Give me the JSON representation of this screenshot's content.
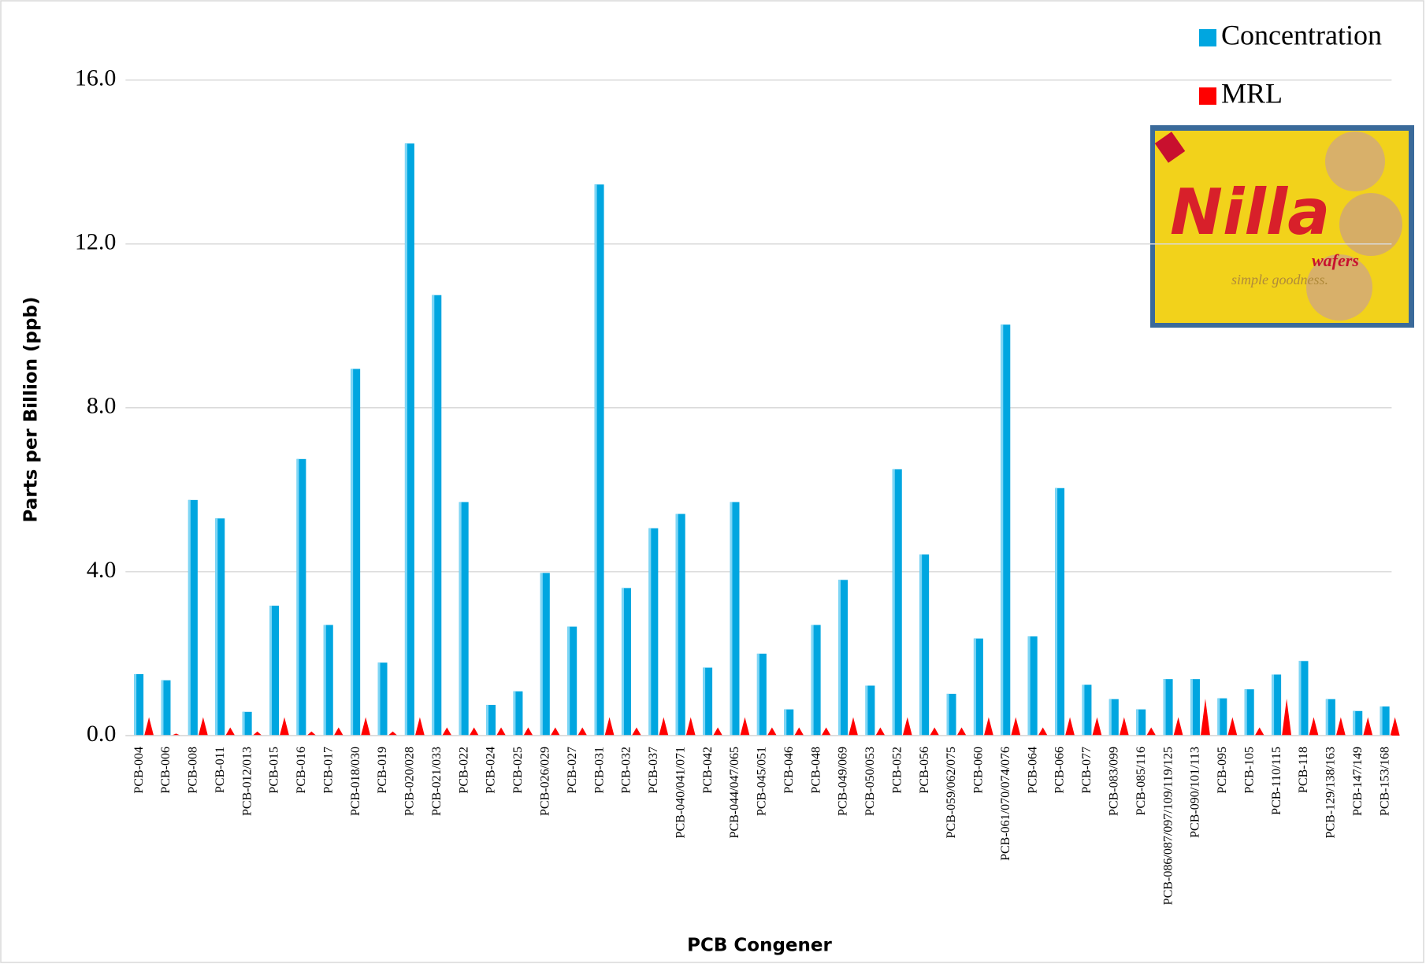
{
  "chart_data": {
    "type": "bar",
    "xlabel": "PCB Congener",
    "ylabel": "Parts per Billion (ppb)",
    "categories": [
      "PCB-004",
      "PCB-006",
      "PCB-008",
      "PCB-011",
      "PCB-012/013",
      "PCB-015",
      "PCB-016",
      "PCB-017",
      "PCB-018/030",
      "PCB-019",
      "PCB-020/028",
      "PCB-021/033",
      "PCB-022",
      "PCB-024",
      "PCB-025",
      "PCB-026/029",
      "PCB-027",
      "PCB-031",
      "PCB-032",
      "PCB-037",
      "PCB-040/041/071",
      "PCB-042",
      "PCB-044/047/065",
      "PCB-045/051",
      "PCB-046",
      "PCB-048",
      "PCB-049/069",
      "PCB-050/053",
      "PCB-052",
      "PCB-056",
      "PCB-059/062/075",
      "PCB-060",
      "PCB-061/070/074/076",
      "PCB-064",
      "PCB-066",
      "PCB-077",
      "PCB-083/099",
      "PCB-085/116",
      "PCB-086/087/097/109/119/125",
      "PCB-090/101/113",
      "PCB-095",
      "PCB-105",
      "PCB-110/115",
      "PCB-118",
      "PCB-129/138/163",
      "PCB-147/149",
      "PCB-153/168"
    ],
    "series": [
      {
        "name": "Concentration",
        "color": "#00a6e0",
        "values": [
          1.5,
          1.35,
          5.75,
          5.3,
          0.58,
          3.17,
          6.75,
          2.7,
          8.95,
          1.78,
          14.45,
          10.75,
          5.7,
          0.75,
          1.08,
          3.97,
          2.66,
          13.45,
          3.6,
          5.06,
          5.41,
          1.66,
          5.7,
          2.0,
          0.64,
          2.7,
          3.8,
          1.22,
          6.5,
          4.42,
          1.02,
          2.37,
          10.03,
          2.42,
          6.04,
          1.24,
          0.89,
          0.64,
          1.38,
          1.38,
          0.91,
          1.13,
          1.49,
          1.82,
          0.89,
          0.6,
          0.71
        ]
      },
      {
        "name": "MRL",
        "color": "#ff0000",
        "values": [
          0.45,
          0.05,
          0.45,
          0.2,
          0.1,
          0.45,
          0.1,
          0.2,
          0.45,
          0.1,
          0.45,
          0.2,
          0.2,
          0.2,
          0.2,
          0.2,
          0.2,
          0.45,
          0.2,
          0.45,
          0.45,
          0.2,
          0.45,
          0.2,
          0.2,
          0.2,
          0.45,
          0.2,
          0.45,
          0.2,
          0.2,
          0.45,
          0.45,
          0.2,
          0.45,
          0.45,
          0.45,
          0.2,
          0.45,
          0.9,
          0.45,
          0.2,
          0.9,
          0.45,
          0.45,
          0.45,
          0.45
        ]
      }
    ],
    "ylim": [
      0,
      16
    ],
    "yticks": [
      {
        "value": 0,
        "label": "0.0"
      },
      {
        "value": 4,
        "label": "4.0"
      },
      {
        "value": 8,
        "label": "8.0"
      },
      {
        "value": 12,
        "label": "12.0"
      },
      {
        "value": 16,
        "label": "16.0"
      }
    ],
    "grid": true,
    "legend": "top-right",
    "annotations": [
      "Nilla",
      "wafers",
      "simple goodness."
    ]
  }
}
